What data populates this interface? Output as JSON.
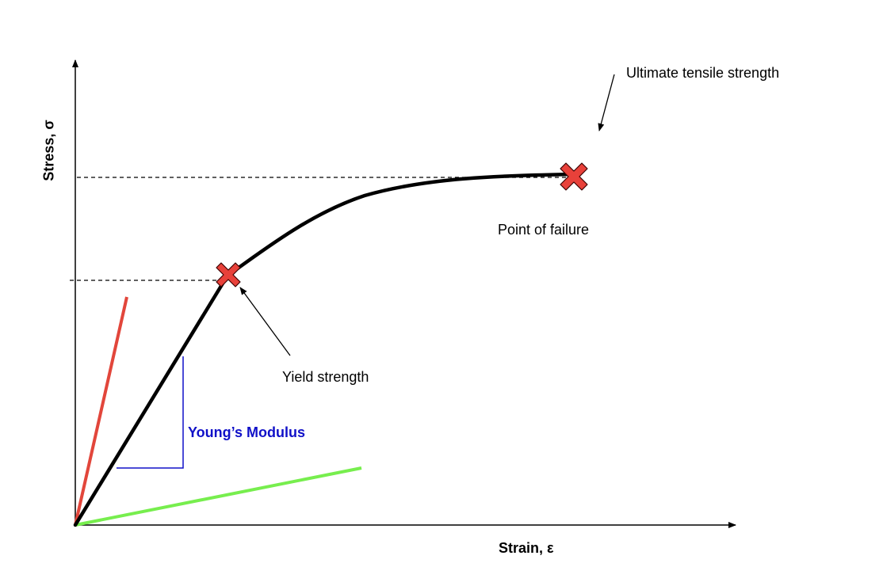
{
  "labels": {
    "y_axis": "Stress, σ",
    "x_axis": "Strain, ε",
    "ultimate_tensile_strength": "Ultimate tensile strength",
    "point_of_failure": "Point of failure",
    "yield_strength": "Yield strength",
    "youngs_modulus": "Young’s Modulus"
  },
  "colors": {
    "curve": "#000000",
    "marker_fill": "#e8413a",
    "stiff_line": "#e2463b",
    "soft_line": "#77ee4e",
    "modulus": "#1010c8"
  }
}
